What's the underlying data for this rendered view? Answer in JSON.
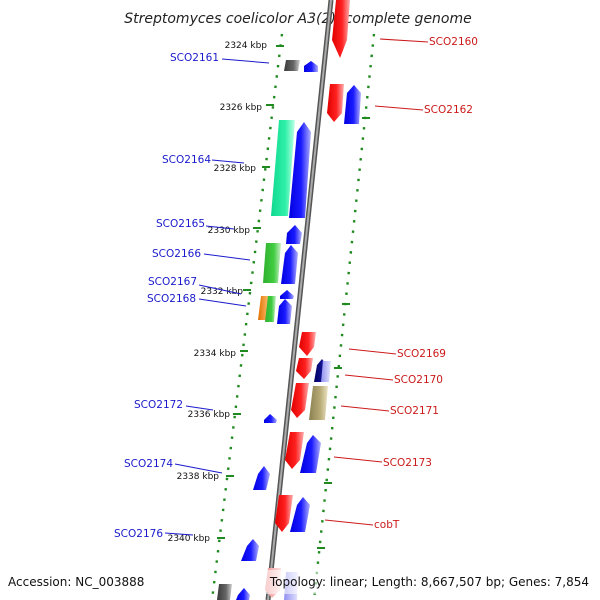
{
  "title": "Streptomyces coelicolor A3(2), complete genome",
  "footer": {
    "accession": "Accession: NC_003888",
    "info": "Topology: linear; Length: 8,667,507 bp; Genes: 7,854"
  },
  "colors": {
    "backbone": "#888888",
    "ticks": "#1f8a1f",
    "label_left": "#1a1acc",
    "label_right": "#cc1a1a"
  },
  "scale": {
    "tick_labels": [
      {
        "kbp": 2324,
        "text": "2324 kbp"
      },
      {
        "kbp": 2326,
        "text": "2326 kbp"
      },
      {
        "kbp": 2328,
        "text": "2328 kbp"
      },
      {
        "kbp": 2330,
        "text": "2330 kbp"
      },
      {
        "kbp": 2332,
        "text": "2332 kbp"
      },
      {
        "kbp": 2334,
        "text": "2334 kbp"
      },
      {
        "kbp": 2336,
        "text": "2336 kbp"
      },
      {
        "kbp": 2338,
        "text": "2338 kbp"
      },
      {
        "kbp": 2340,
        "text": "2340 kbp"
      }
    ]
  },
  "gene_labels": [
    {
      "name": "SCO2160",
      "side": "right"
    },
    {
      "name": "SCO2161",
      "side": "left"
    },
    {
      "name": "SCO2162",
      "side": "right"
    },
    {
      "name": "SCO2164",
      "side": "left"
    },
    {
      "name": "SCO2165",
      "side": "left"
    },
    {
      "name": "SCO2166",
      "side": "left"
    },
    {
      "name": "SCO2167",
      "side": "left"
    },
    {
      "name": "SCO2168",
      "side": "left"
    },
    {
      "name": "SCO2169",
      "side": "right"
    },
    {
      "name": "SCO2170",
      "side": "right"
    },
    {
      "name": "SCO2171",
      "side": "right"
    },
    {
      "name": "SCO2172",
      "side": "left"
    },
    {
      "name": "SCO2173",
      "side": "right"
    },
    {
      "name": "SCO2174",
      "side": "left"
    },
    {
      "name": "cobT",
      "side": "right"
    },
    {
      "name": "SCO2176",
      "side": "left"
    }
  ]
}
